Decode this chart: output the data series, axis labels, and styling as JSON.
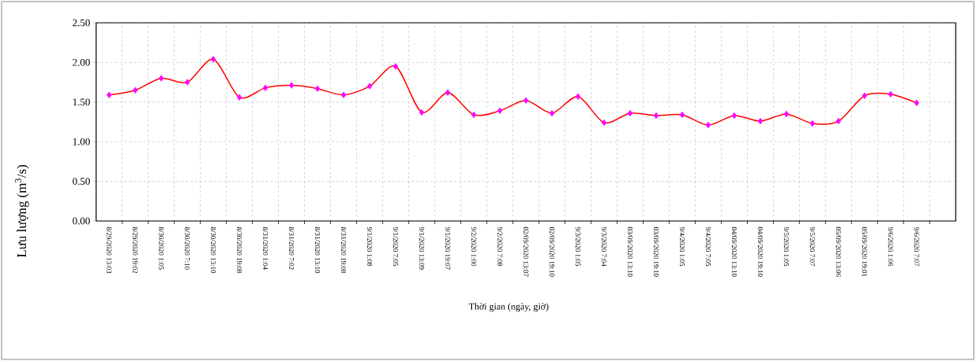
{
  "chart_data": {
    "type": "line",
    "xlabel": "Thời gian (ngày, giờ)",
    "ylabel": "Lưu lượng (m$^{3}$/s)",
    "categories": [
      "8/29/2020 13:03",
      "8/29/2020 19:02",
      "8/30/2020 1:05",
      "8/30/2020 7:10",
      "8/30/2020 13:10",
      "8/30/2020 19:08",
      "8/31/2020 1:04",
      "8/31/2020 7:02",
      "8/31/2020 13:10",
      "8/31/2020 19:08",
      "9/1/2020 1:08",
      "9/1/2020 7:05",
      "9/1/2020 13:09",
      "9/1/2020 19:07",
      "9/2/2020 1:00",
      "9/2/2020 7:08",
      "02/09/2020 13:07",
      "02/09/2020 19:10",
      "9/3/2020 1:05",
      "9/3/2020 7:04",
      "03/09/2020 13:10",
      "03/09/2020 19:10",
      "9/4/2020 1:05",
      "9/4/2020 7:05",
      "04/09/2020 13:10",
      "04/09/2020 19:10",
      "9/5/2020 1:05",
      "9/5/2020 7:07",
      "05/09/2020 13:06",
      "05/09/2020 19:01",
      "9/6/2020 1:06",
      "9/6/2020 7:07",
      null
    ],
    "series": [
      {
        "color": "#ff0000",
        "colors": [
          "#ff00ff",
          "#ff00ff",
          "#ff00ff",
          "#ff00ff",
          "#ff00ff",
          "#ff00ff",
          "#ff00ff",
          "#ff00ff",
          "#ff00ff",
          "#ff00ff",
          "#ff00ff",
          "#ff00ff",
          "#ff00ff",
          "#ff00ff",
          "#ff00ff",
          "#ff00ff",
          "#ff00ff",
          "#ff00ff",
          "#ff00ff",
          "#ff00ff",
          "#ff00ff",
          "#ff00ff",
          "#ff00ff",
          "#ff00ff",
          "#ff00ff",
          "#ff00ff",
          "#ff00ff",
          "#ff00ff",
          "#ff00ff",
          "#ff00ff",
          "#ff00ff",
          "#ff00ff",
          null
        ],
        "values": [
          1.59,
          1.65,
          1.8,
          1.75,
          2.04,
          1.56,
          1.68,
          1.71,
          1.67,
          1.59,
          1.7,
          1.95,
          1.37,
          1.62,
          1.34,
          1.39,
          1.52,
          1.36,
          1.57,
          1.24,
          1.36,
          1.33,
          1.34,
          1.21,
          1.33,
          1.26,
          1.35,
          1.23,
          1.26,
          1.58,
          1.6,
          1.49,
          null
        ]
      }
    ],
    "ylim": [
      0,
      2.5
    ],
    "yticks": [
      {
        "value": 0,
        "label": "0.00"
      },
      {
        "value": 0.5,
        "label": "0.50"
      },
      {
        "value": 1,
        "label": "1.00"
      },
      {
        "value": 1.5,
        "label": "1.50"
      },
      {
        "value": 2,
        "label": "2.00"
      },
      {
        "value": 2.5,
        "label": "2.50"
      }
    ],
    "grid": true,
    "marker": "diamond",
    "line_style": "solid"
  }
}
